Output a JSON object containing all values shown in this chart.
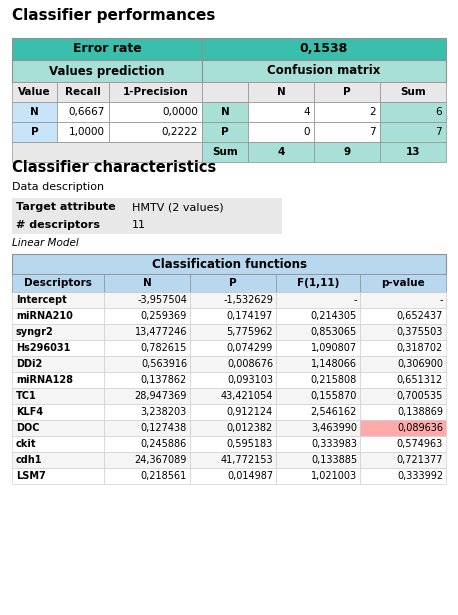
{
  "title1": "Classifier performances",
  "title2": "Classifier characteristics",
  "error_rate_label": "Error rate",
  "error_rate_value": "0,1538",
  "values_pred_label": "Values prediction",
  "confusion_matrix_label": "Confusion matrix",
  "vp_headers": [
    "Value",
    "Recall",
    "1-Precision"
  ],
  "vp_rows": [
    [
      "N",
      "0,6667",
      "0,0000"
    ],
    [
      "P",
      "1,0000",
      "0,2222"
    ]
  ],
  "cm_headers": [
    "",
    "N",
    "P",
    "Sum"
  ],
  "cm_rows": [
    [
      "N",
      "4",
      "2",
      "6"
    ],
    [
      "P",
      "0",
      "7",
      "7"
    ],
    [
      "Sum",
      "4",
      "9",
      "13"
    ]
  ],
  "data_desc_label": "Data description",
  "target_attr_label": "Target attribute",
  "target_attr_value": "HMTV (2 values)",
  "n_desc_label": "# descriptors",
  "n_desc_value": "11",
  "linear_model_label": "Linear Model",
  "clf_func_label": "Classification functions",
  "clf_headers": [
    "Descriptors",
    "N",
    "P",
    "F(1,11)",
    "p-value"
  ],
  "clf_rows": [
    [
      "Intercept",
      "-3,957504",
      "-1,532629",
      "-",
      "-"
    ],
    [
      "miRNA210",
      "0,259369",
      "0,174197",
      "0,214305",
      "0,652437"
    ],
    [
      "syngr2",
      "13,477246",
      "5,775962",
      "0,853065",
      "0,375503"
    ],
    [
      "Hs296031",
      "0,782615",
      "0,074299",
      "1,090807",
      "0,318702"
    ],
    [
      "DDi2",
      "0,563916",
      "0,008676",
      "1,148066",
      "0,306900"
    ],
    [
      "miRNA128",
      "0,137862",
      "0,093103",
      "0,215808",
      "0,651312"
    ],
    [
      "TC1",
      "28,947369",
      "43,421054",
      "0,155870",
      "0,700535"
    ],
    [
      "KLF4",
      "3,238203",
      "0,912124",
      "2,546162",
      "0,138869"
    ],
    [
      "DOC",
      "0,127438",
      "0,012382",
      "3,463990",
      "0,089636"
    ],
    [
      "ckit",
      "0,245886",
      "0,595183",
      "0,333983",
      "0,574963"
    ],
    [
      "cdh1",
      "24,367089",
      "41,772153",
      "0,133885",
      "0,721377"
    ],
    [
      "LSM7",
      "0,218561",
      "0,014987",
      "1,021003",
      "0,333992"
    ]
  ],
  "highlight_row": 8,
  "highlight_col": 4,
  "colors": {
    "teal_dark": "#3BBFAD",
    "teal_light": "#A8E0D8",
    "blue_header": "#B8D8F0",
    "blue_light": "#C8E4F8",
    "gray_bg": "#E8E8E8",
    "white": "#FFFFFF",
    "highlight_red": "#FFAAAA",
    "border": "#909090",
    "bg": "#F0F0F0"
  }
}
